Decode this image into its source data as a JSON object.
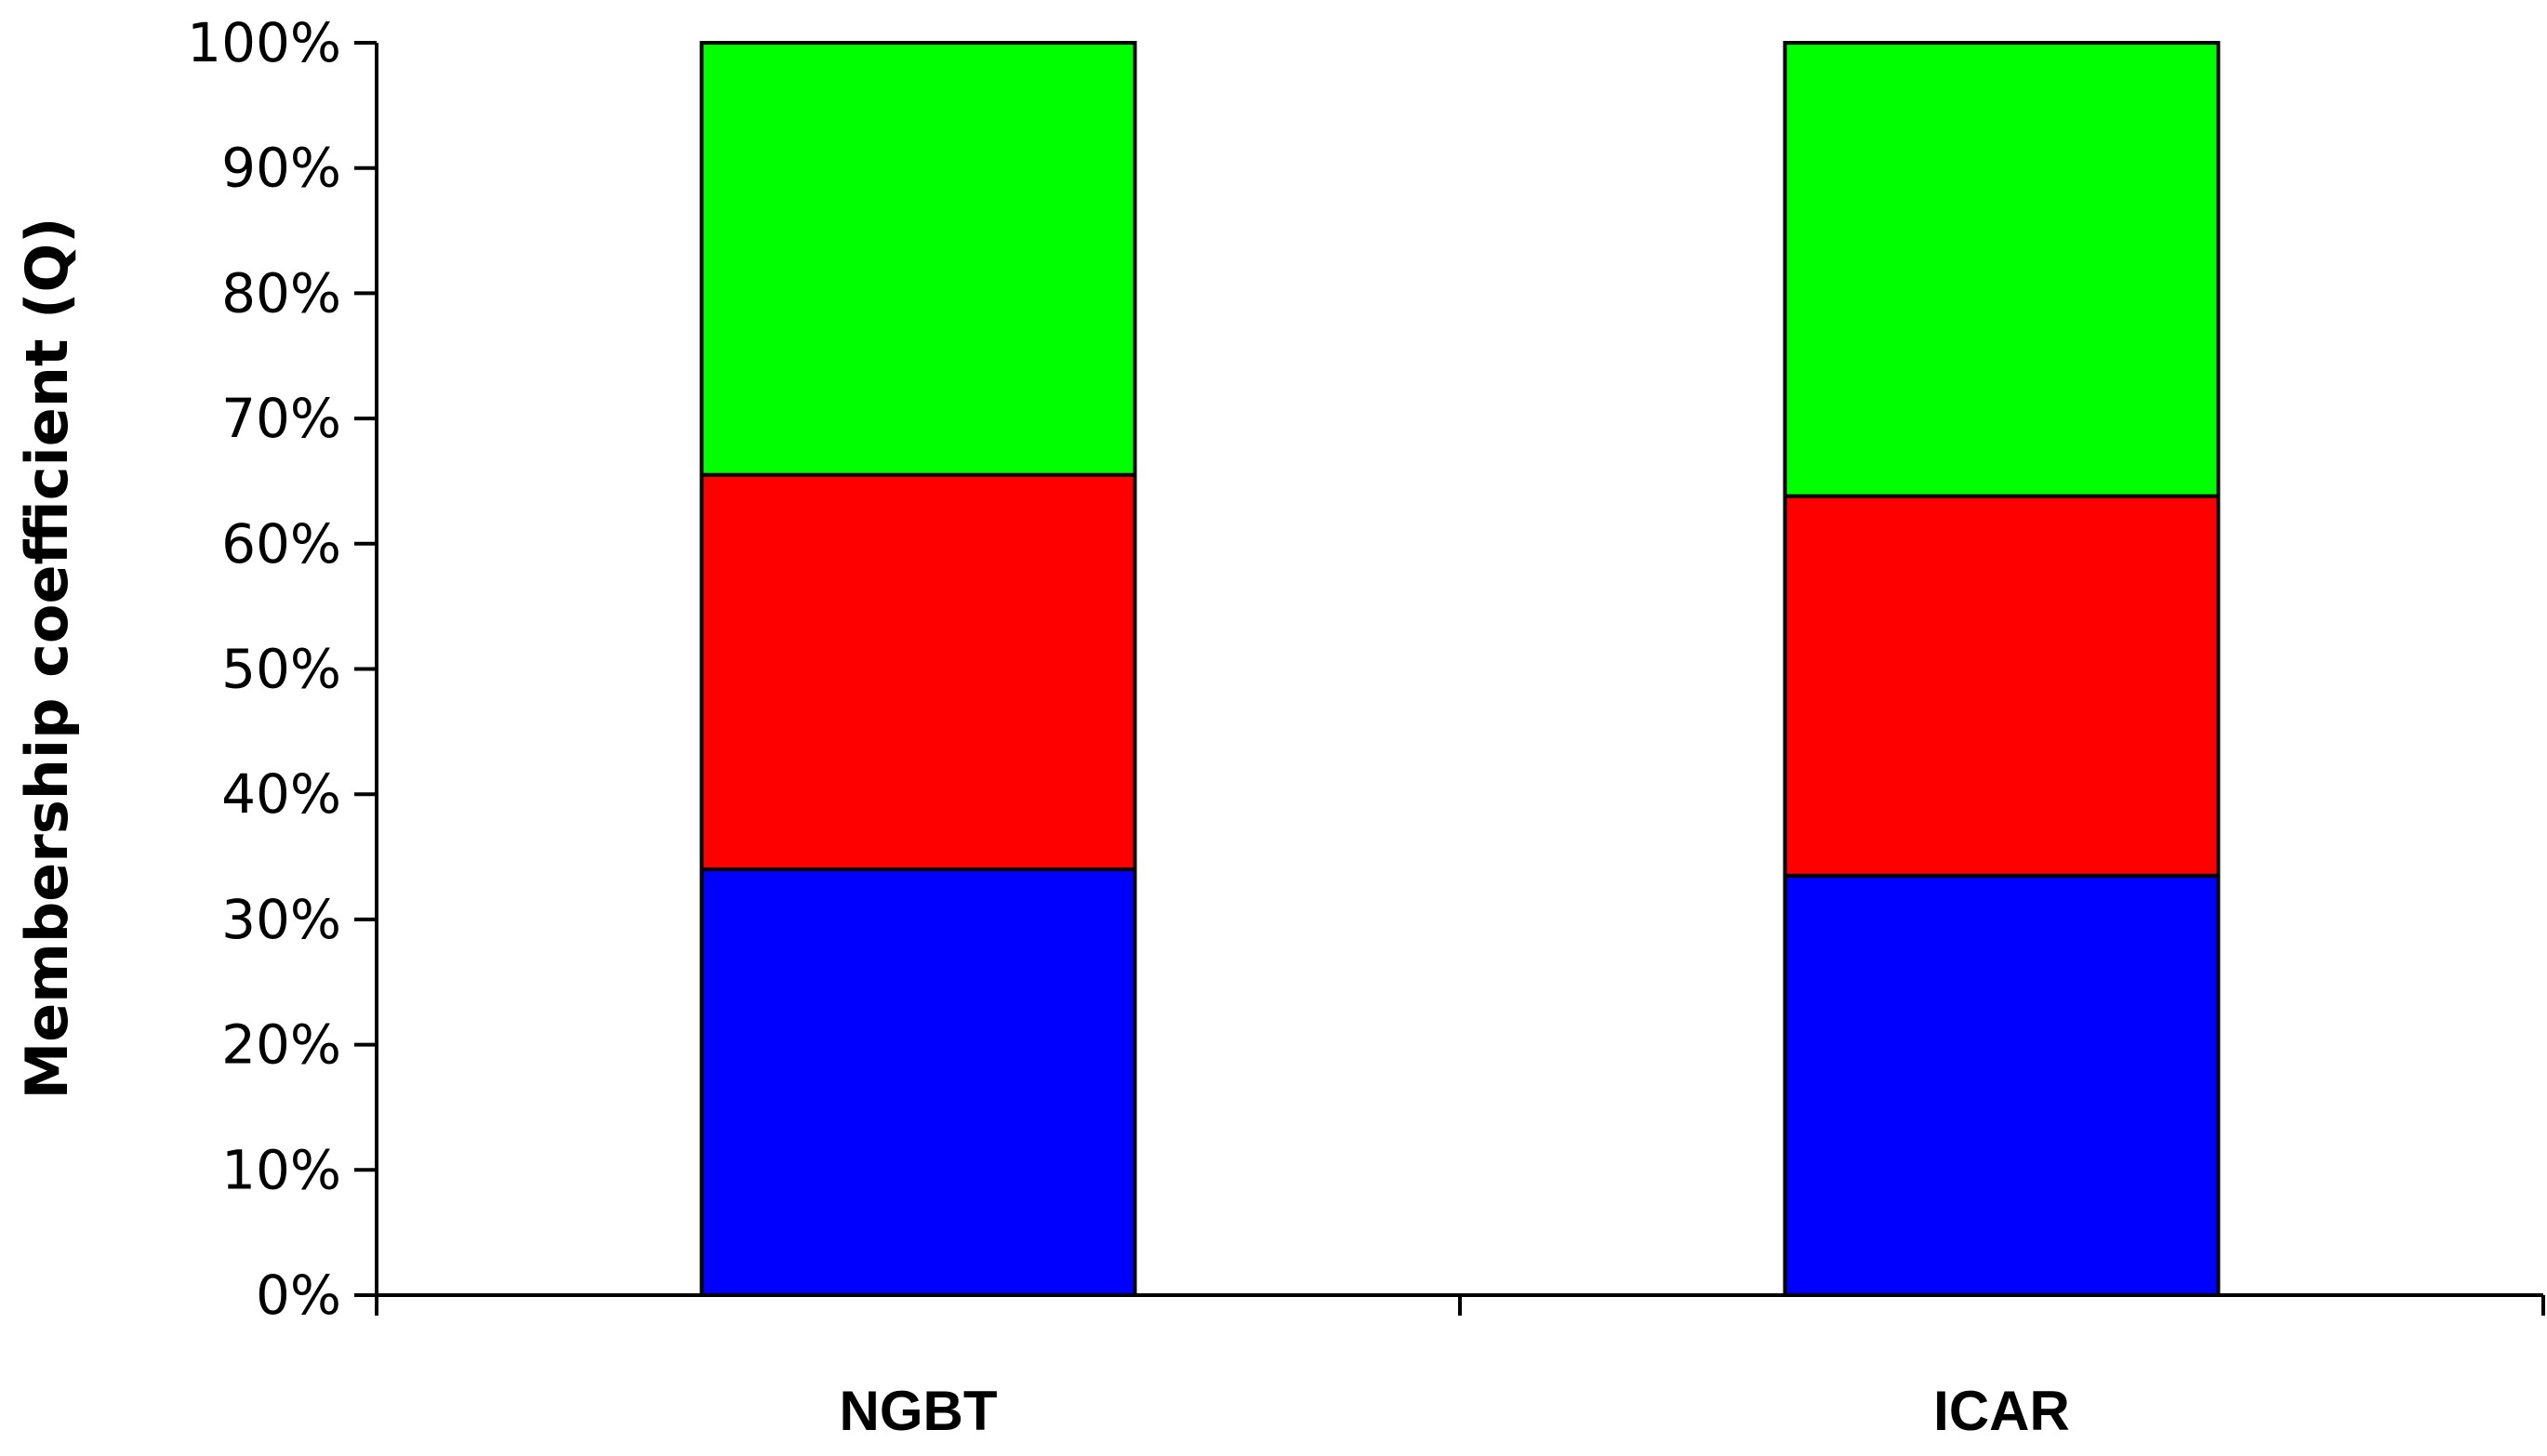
{
  "chart_data": {
    "type": "bar",
    "stacked": true,
    "percent": true,
    "categories": [
      "NGBT",
      "ICAR"
    ],
    "series": [
      {
        "color": "#0000ff",
        "values": [
          34.0,
          33.5
        ]
      },
      {
        "color": "#ff0000",
        "values": [
          31.5,
          30.3
        ]
      },
      {
        "color": "#00ff00",
        "values": [
          34.5,
          36.2
        ]
      }
    ],
    "ylabel": "Membership coefficient (Q)",
    "xlabel": "",
    "ylim": [
      0,
      100
    ],
    "yticks": [
      "0%",
      "10%",
      "20%",
      "30%",
      "40%",
      "50%",
      "60%",
      "70%",
      "80%",
      "90%",
      "100%"
    ],
    "grid": false,
    "legend": "none"
  }
}
